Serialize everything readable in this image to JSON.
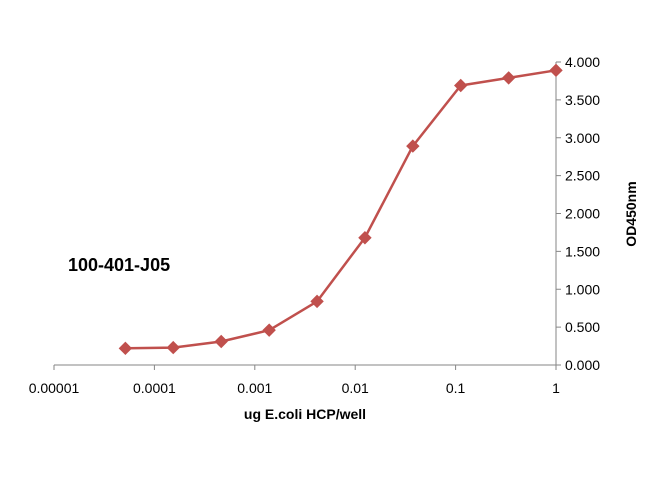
{
  "chart_data": {
    "type": "line",
    "title": "",
    "xlabel": "ug E.coli HCP/well",
    "ylabel": "OD450nm",
    "annotation": "100-401-J05",
    "x_scale": "log",
    "xlim": [
      1e-05,
      1
    ],
    "ylim": [
      0,
      4
    ],
    "x_ticks": [
      1e-05,
      0.0001,
      0.001,
      0.01,
      0.1,
      1
    ],
    "x_tick_labels": [
      "0.00001",
      "0.0001",
      "0.001",
      "0.01",
      "0.1",
      "1"
    ],
    "y_ticks": [
      0,
      0.5,
      1,
      1.5,
      2,
      2.5,
      3,
      3.5,
      4
    ],
    "y_tick_labels": [
      "0.000",
      "0.500",
      "1.000",
      "1.500",
      "2.000",
      "2.500",
      "3.000",
      "3.500",
      "4.000"
    ],
    "y_axis_side": "right",
    "grid": false,
    "legend": "none",
    "series": [
      {
        "color": "#c0504d",
        "marker": "diamond",
        "x": [
          5.14e-05,
          0.000154,
          0.000463,
          0.00139,
          0.00417,
          0.0125,
          0.0375,
          0.1125,
          0.3375,
          1.0
        ],
        "y": [
          0.22,
          0.23,
          0.31,
          0.46,
          0.84,
          1.68,
          2.89,
          3.69,
          3.79,
          3.89
        ]
      }
    ]
  }
}
